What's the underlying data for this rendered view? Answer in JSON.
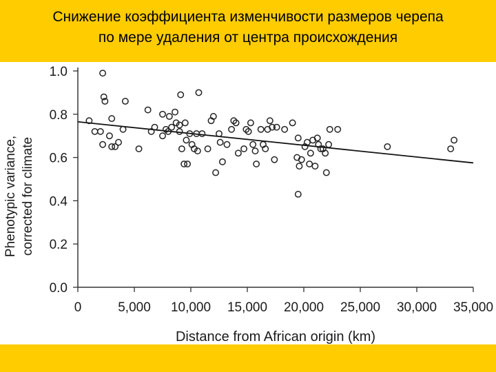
{
  "slide": {
    "title_line1": "Снижение коэффициента изменчивости размеров черепа",
    "title_line2": "по мере удаления от центра происхождения",
    "accent_color": "#ffcc00"
  },
  "chart_data": {
    "type": "scatter",
    "title": "",
    "xlabel": "Distance from African origin (km)",
    "ylabel_line1": "Phenotypic variance,",
    "ylabel_line2": "corrected for climate",
    "xlim": [
      0,
      35000
    ],
    "ylim": [
      0.0,
      1.0
    ],
    "xticks": [
      0,
      5000,
      10000,
      15000,
      20000,
      25000,
      30000,
      35000
    ],
    "xtick_labels": [
      "0",
      "5,000",
      "10,000",
      "15,000",
      "20,000",
      "25,000",
      "30,000",
      "35,000"
    ],
    "yticks": [
      0.0,
      0.2,
      0.4,
      0.6,
      0.8,
      1.0
    ],
    "ytick_labels": [
      "0.0",
      "0.2",
      "0.4",
      "0.6",
      "0.8",
      "1.0"
    ],
    "trendline": {
      "x": [
        0,
        35000
      ],
      "y": [
        0.765,
        0.575
      ]
    },
    "points": [
      [
        1000,
        0.77
      ],
      [
        1500,
        0.72
      ],
      [
        2000,
        0.72
      ],
      [
        2200,
        0.99
      ],
      [
        2300,
        0.88
      ],
      [
        2400,
        0.86
      ],
      [
        2200,
        0.66
      ],
      [
        2800,
        0.7
      ],
      [
        3000,
        0.78
      ],
      [
        3000,
        0.65
      ],
      [
        3300,
        0.65
      ],
      [
        3600,
        0.67
      ],
      [
        4000,
        0.73
      ],
      [
        4200,
        0.86
      ],
      [
        5400,
        0.64
      ],
      [
        6200,
        0.82
      ],
      [
        6500,
        0.72
      ],
      [
        6800,
        0.74
      ],
      [
        7500,
        0.8
      ],
      [
        7500,
        0.7
      ],
      [
        7800,
        0.73
      ],
      [
        8000,
        0.72
      ],
      [
        8100,
        0.79
      ],
      [
        8300,
        0.74
      ],
      [
        8600,
        0.81
      ],
      [
        8700,
        0.76
      ],
      [
        9000,
        0.75
      ],
      [
        9000,
        0.72
      ],
      [
        9100,
        0.89
      ],
      [
        9200,
        0.64
      ],
      [
        9400,
        0.57
      ],
      [
        9500,
        0.76
      ],
      [
        9600,
        0.68
      ],
      [
        9700,
        0.57
      ],
      [
        9900,
        0.71
      ],
      [
        10100,
        0.66
      ],
      [
        10300,
        0.64
      ],
      [
        10500,
        0.71
      ],
      [
        10600,
        0.63
      ],
      [
        10700,
        0.9
      ],
      [
        11000,
        0.71
      ],
      [
        11500,
        0.64
      ],
      [
        11800,
        0.77
      ],
      [
        12000,
        0.79
      ],
      [
        12200,
        0.53
      ],
      [
        12500,
        0.71
      ],
      [
        12600,
        0.67
      ],
      [
        12800,
        0.58
      ],
      [
        13200,
        0.66
      ],
      [
        13600,
        0.73
      ],
      [
        13800,
        0.77
      ],
      [
        14000,
        0.76
      ],
      [
        14200,
        0.62
      ],
      [
        14700,
        0.64
      ],
      [
        14900,
        0.73
      ],
      [
        15100,
        0.72
      ],
      [
        15300,
        0.76
      ],
      [
        15500,
        0.66
      ],
      [
        15700,
        0.63
      ],
      [
        15800,
        0.57
      ],
      [
        16200,
        0.73
      ],
      [
        16400,
        0.66
      ],
      [
        16600,
        0.64
      ],
      [
        16800,
        0.73
      ],
      [
        17000,
        0.77
      ],
      [
        17200,
        0.74
      ],
      [
        17400,
        0.59
      ],
      [
        17600,
        0.74
      ],
      [
        18300,
        0.73
      ],
      [
        19000,
        0.76
      ],
      [
        19400,
        0.6
      ],
      [
        19500,
        0.69
      ],
      [
        19500,
        0.43
      ],
      [
        19600,
        0.56
      ],
      [
        19800,
        0.59
      ],
      [
        20100,
        0.65
      ],
      [
        20300,
        0.67
      ],
      [
        20500,
        0.57
      ],
      [
        20600,
        0.62
      ],
      [
        20800,
        0.68
      ],
      [
        21000,
        0.56
      ],
      [
        21200,
        0.69
      ],
      [
        21300,
        0.66
      ],
      [
        21500,
        0.64
      ],
      [
        21700,
        0.64
      ],
      [
        21900,
        0.62
      ],
      [
        22000,
        0.53
      ],
      [
        22200,
        0.66
      ],
      [
        22300,
        0.73
      ],
      [
        23000,
        0.73
      ],
      [
        27400,
        0.65
      ],
      [
        33000,
        0.64
      ],
      [
        33300,
        0.68
      ]
    ]
  }
}
